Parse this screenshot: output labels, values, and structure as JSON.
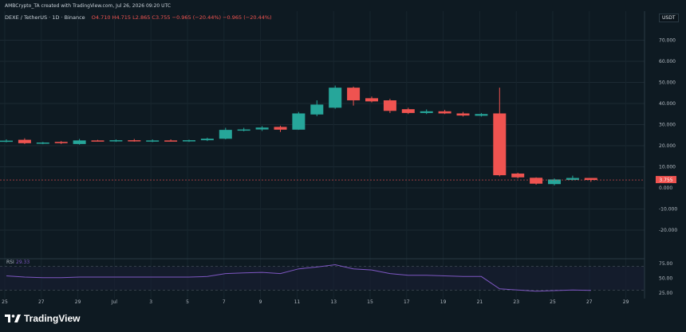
{
  "header": {
    "published_by": "AMBCrypto_TA created with TradingView.com, Jul 26, 2026 09:20 UTC",
    "symbol": "DEXE / TetherUS · 1D · Binance",
    "ohlc": "O4.710 H4.715 L2.865 C3.755 −0.965 (−20.44%) −0.965 (−20.44%)"
  },
  "currency_badge": "USDT",
  "last_price_label": "3.755",
  "brand": "TradingView",
  "colors": {
    "background": "#0e1a22",
    "up": "#26a69a",
    "down": "#ef5350",
    "rsi_line": "#7e57c2",
    "axis_text": "#b2bac2"
  },
  "chart_data": [
    {
      "type": "candlestick",
      "title": "DEXE / TetherUS · 1D · Binance",
      "x_ticks": [
        "25",
        "27",
        "29",
        "Jul",
        "3",
        "5",
        "7",
        "9",
        "11",
        "13",
        "15",
        "17",
        "19",
        "21",
        "23",
        "25",
        "27",
        "29"
      ],
      "y_ticks": [
        "70.000",
        "60.000",
        "50.000",
        "40.000",
        "30.000",
        "20.000",
        "10.000",
        "0.000",
        "-10.000",
        "-20.000"
      ],
      "ylim": [
        -25,
        75
      ],
      "grid": true,
      "candles": [
        {
          "date": "Jun 24",
          "open": 22.0,
          "high": 23.0,
          "low": 21.6,
          "close": 22.4
        },
        {
          "date": "Jun 25",
          "open": 22.8,
          "high": 23.5,
          "low": 20.8,
          "close": 21.2
        },
        {
          "date": "Jun 26",
          "open": 21.3,
          "high": 21.8,
          "low": 20.7,
          "close": 21.5
        },
        {
          "date": "Jun 27",
          "open": 21.8,
          "high": 22.2,
          "low": 20.8,
          "close": 21.2
        },
        {
          "date": "Jun 28",
          "open": 20.8,
          "high": 23.2,
          "low": 20.5,
          "close": 22.5
        },
        {
          "date": "Jun 29",
          "open": 22.5,
          "high": 22.8,
          "low": 22.0,
          "close": 22.4
        },
        {
          "date": "Jun 30",
          "open": 22.4,
          "high": 23.0,
          "low": 21.8,
          "close": 22.6
        },
        {
          "date": "Jul 1",
          "open": 22.6,
          "high": 23.2,
          "low": 21.9,
          "close": 22.3
        },
        {
          "date": "Jul 2",
          "open": 22.3,
          "high": 23.0,
          "low": 21.7,
          "close": 22.5
        },
        {
          "date": "Jul 3",
          "open": 22.5,
          "high": 23.0,
          "low": 22.0,
          "close": 22.2
        },
        {
          "date": "Jul 4",
          "open": 22.2,
          "high": 22.9,
          "low": 21.8,
          "close": 22.6
        },
        {
          "date": "Jul 5",
          "open": 22.6,
          "high": 23.8,
          "low": 22.2,
          "close": 23.3
        },
        {
          "date": "Jul 6",
          "open": 23.3,
          "high": 28.5,
          "low": 23.0,
          "close": 27.5
        },
        {
          "date": "Jul 7",
          "open": 27.5,
          "high": 28.5,
          "low": 26.8,
          "close": 27.7
        },
        {
          "date": "Jul 8",
          "open": 27.7,
          "high": 29.3,
          "low": 27.0,
          "close": 28.6
        },
        {
          "date": "Jul 9",
          "open": 28.9,
          "high": 29.5,
          "low": 26.5,
          "close": 27.6
        },
        {
          "date": "Jul 10",
          "open": 27.6,
          "high": 36.0,
          "low": 27.5,
          "close": 35.3
        },
        {
          "date": "Jul 11",
          "open": 34.8,
          "high": 41.5,
          "low": 34.0,
          "close": 39.5
        },
        {
          "date": "Jul 12",
          "open": 38.0,
          "high": 48.5,
          "low": 37.5,
          "close": 47.5
        },
        {
          "date": "Jul 13",
          "open": 47.5,
          "high": 48.0,
          "low": 39.0,
          "close": 41.5
        },
        {
          "date": "Jul 14",
          "open": 42.5,
          "high": 43.3,
          "low": 40.5,
          "close": 41.0
        },
        {
          "date": "Jul 15",
          "open": 41.5,
          "high": 42.2,
          "low": 35.5,
          "close": 36.5
        },
        {
          "date": "Jul 16",
          "open": 37.3,
          "high": 38.0,
          "low": 35.0,
          "close": 35.5
        },
        {
          "date": "Jul 17",
          "open": 35.5,
          "high": 37.2,
          "low": 35.0,
          "close": 36.3
        },
        {
          "date": "Jul 18",
          "open": 36.3,
          "high": 37.0,
          "low": 35.0,
          "close": 35.3
        },
        {
          "date": "Jul 19",
          "open": 35.3,
          "high": 36.0,
          "low": 33.8,
          "close": 34.3
        },
        {
          "date": "Jul 20",
          "open": 34.2,
          "high": 35.5,
          "low": 33.8,
          "close": 35.0
        },
        {
          "date": "Jul 21",
          "open": 35.3,
          "high": 47.5,
          "low": 5.5,
          "close": 6.0
        },
        {
          "date": "Jul 22",
          "open": 6.8,
          "high": 7.2,
          "low": 4.5,
          "close": 5.0
        },
        {
          "date": "Jul 23",
          "open": 4.8,
          "high": 5.0,
          "low": 1.5,
          "close": 2.0
        },
        {
          "date": "Jul 24",
          "open": 1.8,
          "high": 4.5,
          "low": 1.2,
          "close": 4.0
        },
        {
          "date": "Jul 25",
          "open": 3.8,
          "high": 5.8,
          "low": 3.5,
          "close": 4.7
        },
        {
          "date": "Jul 26",
          "open": 4.71,
          "high": 4.715,
          "low": 2.865,
          "close": 3.755
        }
      ]
    },
    {
      "type": "line",
      "title": "RSI",
      "legend": "RSI",
      "value_label": "29.33",
      "y_ticks": [
        "75.00",
        "50.00",
        "25.00"
      ],
      "ylim": [
        15,
        90
      ],
      "bands": [
        30,
        70
      ],
      "series": [
        {
          "name": "RSI",
          "values": [
            54,
            52,
            51,
            51,
            52,
            52,
            52,
            52,
            52,
            52,
            52,
            53,
            58,
            59,
            60,
            58,
            66,
            69,
            73,
            66,
            64,
            58,
            55,
            55,
            54,
            53,
            53,
            32,
            30,
            28,
            29,
            30,
            29.33
          ]
        }
      ]
    }
  ]
}
